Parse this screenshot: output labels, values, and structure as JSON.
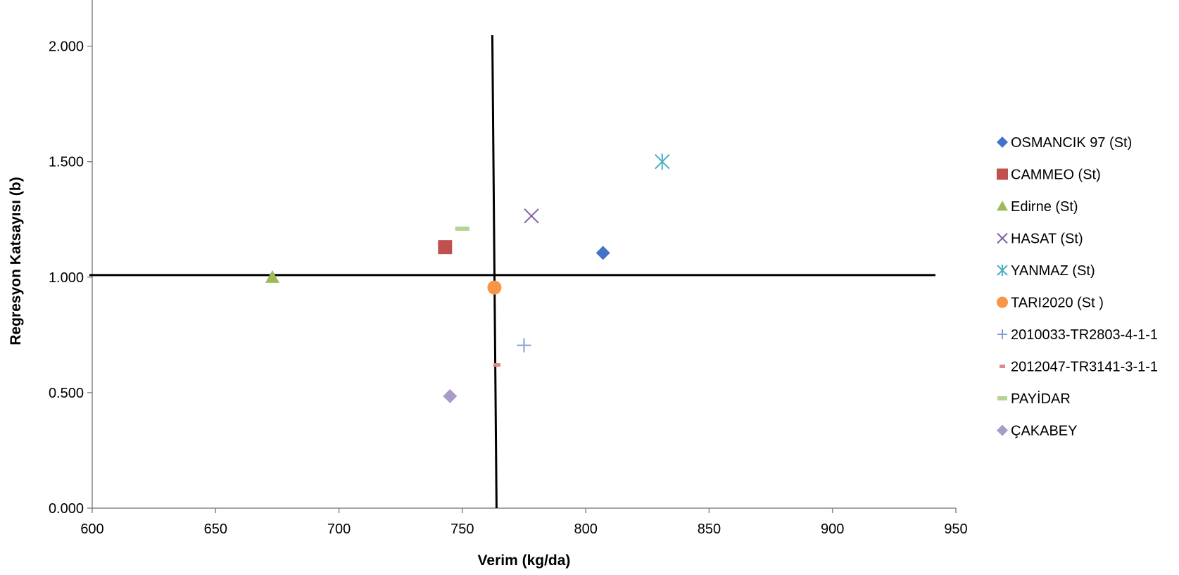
{
  "chart_data": {
    "type": "scatter",
    "xlabel": "Verim (kg/da)",
    "ylabel": "Regresyon Katsayısı (b)",
    "xlim": [
      600,
      950
    ],
    "ylim": [
      0,
      2.2
    ],
    "xticks": [
      600,
      650,
      700,
      750,
      800,
      850,
      900,
      950
    ],
    "xtick_labels": [
      "600",
      "650",
      "700",
      "750",
      "800",
      "850",
      "900",
      "950"
    ],
    "yticks": [
      0,
      0.5,
      1.0,
      1.5,
      2.0
    ],
    "ytick_labels": [
      "0.000",
      "0.500",
      "1.000",
      "1.500",
      "2.000"
    ],
    "grid": false,
    "legend_position": "right",
    "reference_lines": [
      {
        "orientation": "horizontal",
        "value": 1.0
      },
      {
        "orientation": "vertical",
        "value": 763
      }
    ],
    "series": [
      {
        "name": "OSMANCIK 97  (St)",
        "marker": "diamond",
        "color": "#4472C4",
        "x": 807,
        "y": 1.105
      },
      {
        "name": "CAMMEO (St)",
        "marker": "square",
        "color": "#C0504D",
        "x": 743,
        "y": 1.13
      },
      {
        "name": "Edirne (St)",
        "marker": "triangle",
        "color": "#9BBB59",
        "x": 673,
        "y": 1.0
      },
      {
        "name": "HASAT (St)",
        "marker": "x",
        "color": "#8064A2",
        "x": 778,
        "y": 1.265
      },
      {
        "name": "YANMAZ (St)",
        "marker": "star",
        "color": "#4BACC6",
        "x": 831,
        "y": 1.5
      },
      {
        "name": "TARI2020 (St )",
        "marker": "circle",
        "color": "#F79646",
        "x": 763,
        "y": 0.955
      },
      {
        "name": "2010033-TR2803-4-1-1",
        "marker": "plus",
        "color": "#7F9FD6",
        "x": 775,
        "y": 0.705
      },
      {
        "name": "2012047-TR3141-3-1-1",
        "marker": "dash",
        "color": "#E0898A",
        "x": 764,
        "y": 0.62
      },
      {
        "name": "PAYİDAR",
        "marker": "longdash",
        "color": "#B4D395",
        "x": 750,
        "y": 1.21
      },
      {
        "name": "ÇAKABEY",
        "marker": "diamond",
        "color": "#A99BC7",
        "x": 745,
        "y": 0.485
      }
    ]
  }
}
